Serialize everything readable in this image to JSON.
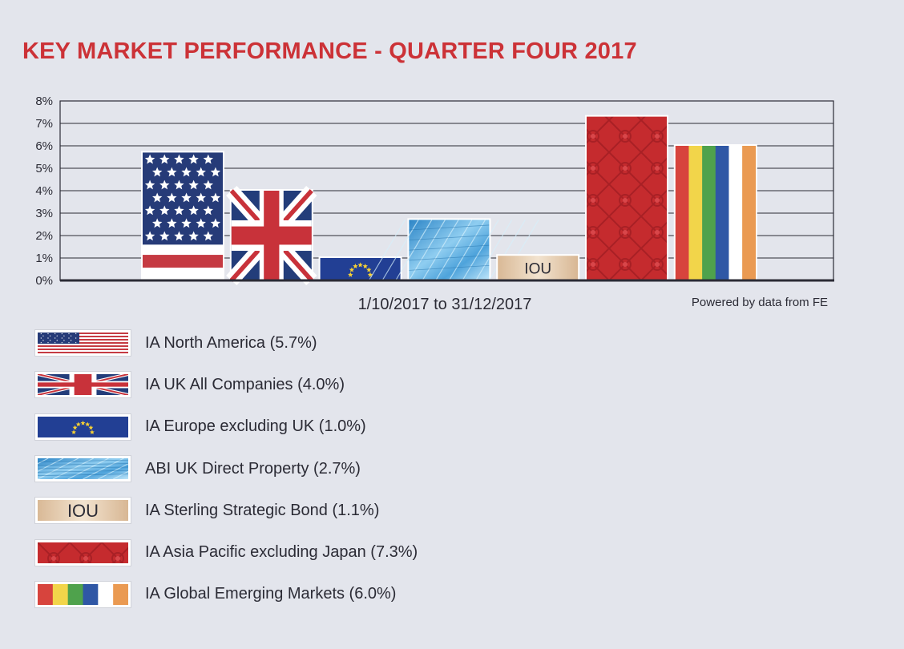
{
  "title": "KEY MARKET PERFORMANCE - QUARTER FOUR 2017",
  "period": "1/10/2017 to 31/12/2017",
  "source": "Powered by data from FE",
  "colors": {
    "title": "#cc3237",
    "background": "#e3e5ec",
    "grid": "#2b2b35"
  },
  "chart_data": {
    "type": "bar",
    "title": "KEY MARKET PERFORMANCE - QUARTER FOUR 2017",
    "xlabel": "1/10/2017 to 31/12/2017",
    "ylabel": "",
    "ylim": [
      0,
      8
    ],
    "yticks": [
      "0%",
      "1%",
      "2%",
      "3%",
      "4%",
      "5%",
      "6%",
      "7%",
      "8%"
    ],
    "grid": true,
    "legend_position": "bottom",
    "categories": [
      "IA North America (5.7%)",
      "IA UK All Companies (4.0%)",
      "IA Europe excluding UK (1.0%)",
      "ABI UK Direct Property (2.7%)",
      "IA Sterling Strategic Bond (1.1%)",
      "IA Asia Pacific excluding Japan (7.3%)",
      "IA Global Emerging Markets (6.0%)"
    ],
    "values": [
      5.7,
      4.0,
      1.0,
      2.7,
      1.1,
      7.3,
      6.0
    ],
    "fills": [
      "us-flag",
      "uk-flag",
      "eu-flag",
      "glass-building",
      "iou-note",
      "chinese-pattern",
      "stripes"
    ],
    "bar_text": [
      "",
      "",
      "",
      "",
      "IOU",
      "",
      ""
    ]
  }
}
